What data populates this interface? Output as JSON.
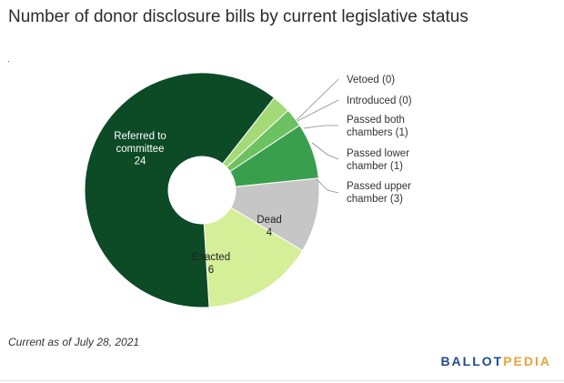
{
  "title": "Number of donor disclosure bills by current legislative status",
  "footnote": "Current as of July 28, 2021",
  "brand": {
    "part1": "BALLOT",
    "part2": "PEDIA"
  },
  "chart_data": {
    "type": "pie",
    "title": "Number of donor disclosure bills by current legislative status",
    "donut": true,
    "slices": [
      {
        "label": "Vetoed",
        "value": 0,
        "color": "#1e5a2e",
        "inner_label": [
          "Vetoed (0)"
        ]
      },
      {
        "label": "Introduced",
        "value": 0,
        "color": "#1e5a2e",
        "inner_label": [
          "Introduced (0)"
        ]
      },
      {
        "label": "Passed both chambers",
        "value": 1,
        "color": "#a3d977",
        "inner_label": [
          "Passed both",
          "chambers (1)"
        ]
      },
      {
        "label": "Passed lower chamber",
        "value": 1,
        "color": "#6cc160",
        "inner_label": [
          "Passed lower",
          "chamber (1)"
        ]
      },
      {
        "label": "Passed upper chamber",
        "value": 3,
        "color": "#3a9f4d",
        "inner_label": [
          "Passed upper",
          "chamber (3)"
        ]
      },
      {
        "label": "Dead",
        "value": 4,
        "color": "#c6c6c6",
        "inner_label": [
          "Dead",
          "4"
        ]
      },
      {
        "label": "Enacted",
        "value": 6,
        "color": "#d5ee98",
        "inner_label": [
          "Enacted",
          "6"
        ]
      },
      {
        "label": "Referred to committee",
        "value": 24,
        "color": "#0d4a26",
        "inner_label": [
          "Referred to",
          "committee",
          "24"
        ]
      }
    ],
    "legend": "none"
  }
}
